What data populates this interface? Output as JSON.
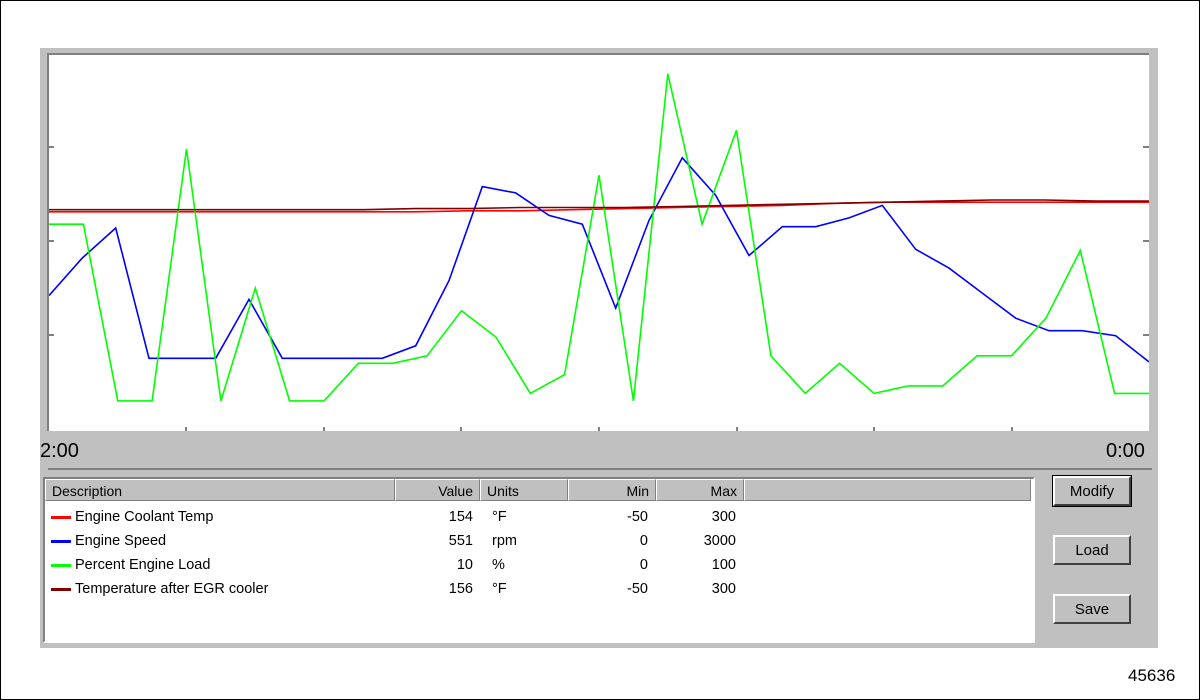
{
  "chart_data": {
    "type": "line",
    "x_range": [
      "2:00",
      "0:00"
    ],
    "series": [
      {
        "name": "Engine Coolant Temp",
        "color": "#ff0000",
        "values": [
          154,
          154,
          154,
          154,
          154,
          154,
          154,
          154,
          155,
          155,
          156,
          157,
          158,
          159,
          160,
          162,
          163,
          163,
          163,
          163,
          163,
          163
        ]
      },
      {
        "name": "Engine Speed",
        "color": "#0000ff",
        "values": [
          1080,
          1380,
          1620,
          580,
          580,
          580,
          1050,
          580,
          580,
          580,
          580,
          680,
          1200,
          1950,
          1900,
          1720,
          1650,
          980,
          1680,
          2180,
          1880,
          1400,
          1630,
          1630,
          1700,
          1800,
          1450,
          1300,
          1100,
          900,
          800,
          800,
          760,
          551
        ]
      },
      {
        "name": "Percent Engine Load",
        "color": "#00ff00",
        "values": [
          55,
          55,
          8,
          8,
          75,
          8,
          38,
          8,
          8,
          18,
          18,
          20,
          32,
          25,
          10,
          15,
          68,
          8,
          95,
          55,
          80,
          20,
          10,
          18,
          10,
          12,
          12,
          20,
          20,
          30,
          48,
          10,
          10
        ]
      },
      {
        "name": "Temperature after EGR cooler",
        "color": "#800000",
        "values": [
          156,
          156,
          156,
          156,
          156,
          156,
          156,
          157,
          157,
          158,
          158,
          158,
          159,
          160,
          161,
          162,
          163,
          164,
          165,
          165,
          164,
          164
        ]
      }
    ]
  },
  "axis": {
    "left_label": "2:00",
    "right_label": "0:00"
  },
  "table": {
    "headers": {
      "description": "Description",
      "value": "Value",
      "units": "Units",
      "min": "Min",
      "max": "Max"
    },
    "rows": [
      {
        "description": "Engine Coolant Temp",
        "value": "154",
        "units": "°F",
        "min": "-50",
        "max": "300",
        "color": "#ff0000"
      },
      {
        "description": "Engine Speed",
        "value": "551",
        "units": "rpm",
        "min": "0",
        "max": "3000",
        "color": "#0000ff"
      },
      {
        "description": "Percent Engine Load",
        "value": "10",
        "units": "%",
        "min": "0",
        "max": "100",
        "color": "#00ff00"
      },
      {
        "description": "Temperature after EGR cooler",
        "value": "156",
        "units": "°F",
        "min": "-50",
        "max": "300",
        "color": "#800000"
      }
    ]
  },
  "buttons": {
    "modify": "Modify",
    "load": "Load",
    "save": "Save"
  },
  "figure_number": "45636"
}
